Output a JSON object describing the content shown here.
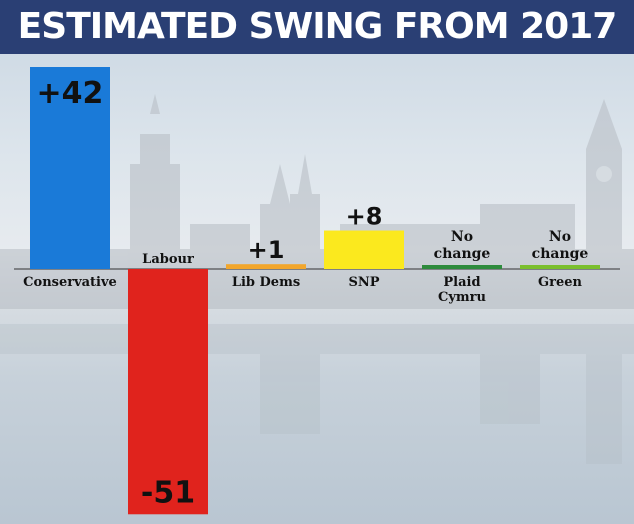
{
  "chart_data": {
    "type": "bar",
    "title": "ESTIMATED SWING FROM 2017",
    "xlabel": "",
    "ylabel": "",
    "ylim": [
      -51,
      42
    ],
    "grid": false,
    "categories": [
      "Conservative",
      "Labour",
      "Lib Dems",
      "SNP",
      "Plaid Cymru",
      "Green"
    ],
    "values": [
      42,
      -51,
      1,
      8,
      0,
      0
    ],
    "data_labels": [
      "+42",
      "-51",
      "+1",
      "+8",
      "No change",
      "No change"
    ],
    "colors": [
      "#1a7ad8",
      "#e0231d",
      "#f2a62c",
      "#fbe91e",
      "#2e8b3d",
      "#7bbf2e"
    ]
  }
}
